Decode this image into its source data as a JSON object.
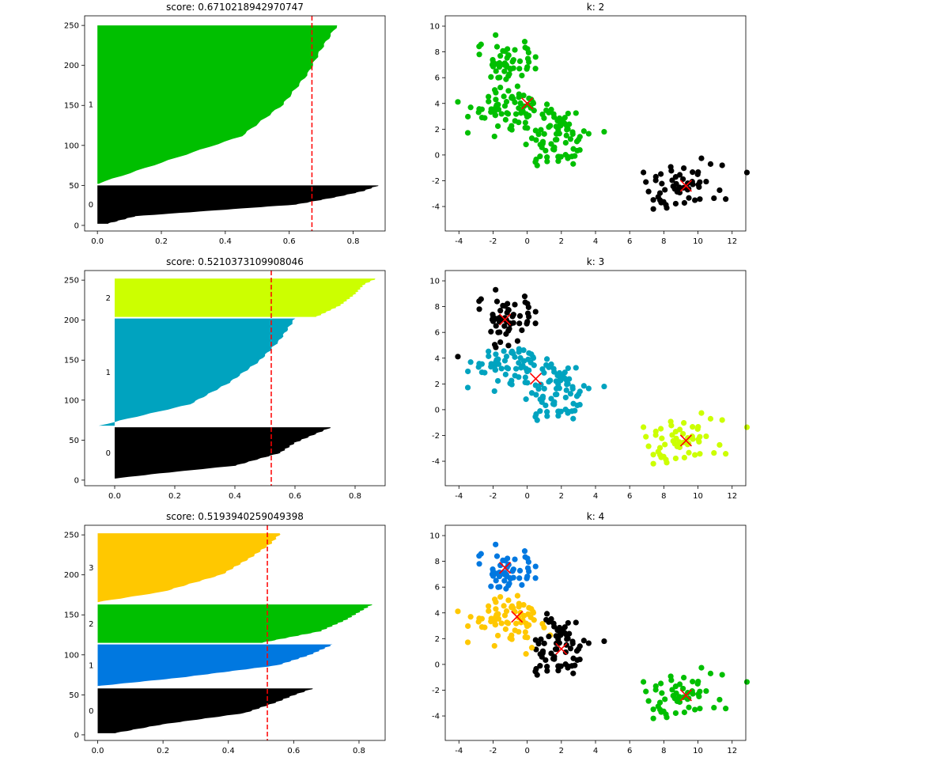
{
  "figure": {
    "layout": "3 rows x 2 columns (silhouette plot left, cluster scatter right)"
  },
  "colors": {
    "threshold_line": "#ff0000",
    "centroid_marker": "#ff0000",
    "axes": "#000000"
  },
  "chart_data": [
    {
      "type": "area",
      "subtype": "silhouette",
      "title": "score: 0.6710218942970747",
      "score": 0.6710218942970747,
      "xlabel": "",
      "ylabel": "",
      "xlim": [
        -0.04,
        0.9
      ],
      "ylim": [
        -7,
        262
      ],
      "xticks": [
        0,
        0.2,
        0.4,
        0.6,
        0.8
      ],
      "xtick_labels": [
        "0.0",
        "0.2",
        "0.4",
        "0.6",
        "0.8"
      ],
      "yticks": [
        0,
        50,
        100,
        150,
        200,
        250
      ],
      "grid": false,
      "clusters": [
        {
          "label": "0",
          "color": "#000000",
          "y_range": [
            2,
            50
          ],
          "profile": [
            [
              0.0,
              0.03
            ],
            [
              0.2,
              0.12
            ],
            [
              0.5,
              0.62
            ],
            [
              0.7,
              0.75
            ],
            [
              0.85,
              0.83
            ],
            [
              1.0,
              0.88
            ]
          ]
        },
        {
          "label": "1",
          "color": "#00bf00",
          "y_range": [
            52,
            250
          ],
          "profile": [
            [
              0.0,
              0.0
            ],
            [
              0.1,
              0.15
            ],
            [
              0.3,
              0.45
            ],
            [
              0.5,
              0.58
            ],
            [
              0.7,
              0.66
            ],
            [
              0.85,
              0.7
            ],
            [
              1.0,
              0.75
            ]
          ]
        }
      ]
    },
    {
      "type": "scatter",
      "title": "k: 2",
      "xlabel": "",
      "ylabel": "",
      "xlim": [
        -4.8,
        12.8
      ],
      "ylim": [
        -5.9,
        10.8
      ],
      "xticks": [
        -4,
        -2,
        0,
        2,
        4,
        6,
        8,
        10,
        12
      ],
      "yticks": [
        -4,
        -2,
        0,
        2,
        4,
        6,
        8,
        10
      ],
      "grid": false,
      "cluster_colors": [
        "#000000",
        "#00bf00"
      ],
      "centroids": [
        {
          "x": 9.3,
          "y": -2.4,
          "cluster": 0
        },
        {
          "x": 0.0,
          "y": 4.0,
          "cluster": 1
        }
      ]
    },
    {
      "type": "area",
      "subtype": "silhouette",
      "title": "score: 0.5210373109908046",
      "score": 0.5210373109908046,
      "xlabel": "",
      "ylabel": "",
      "xlim": [
        -0.1,
        0.9
      ],
      "ylim": [
        -7,
        262
      ],
      "xticks": [
        0,
        0.2,
        0.4,
        0.6,
        0.8
      ],
      "xtick_labels": [
        "0.0",
        "0.2",
        "0.4",
        "0.6",
        "0.8"
      ],
      "yticks": [
        0,
        50,
        100,
        150,
        200,
        250
      ],
      "grid": false,
      "clusters": [
        {
          "label": "0",
          "color": "#000000",
          "y_range": [
            2,
            66
          ],
          "profile": [
            [
              0.0,
              0.0
            ],
            [
              0.1,
              0.15
            ],
            [
              0.25,
              0.4
            ],
            [
              0.5,
              0.55
            ],
            [
              0.7,
              0.6
            ],
            [
              0.85,
              0.66
            ],
            [
              1.0,
              0.72
            ]
          ]
        },
        {
          "label": "1",
          "color": "#00a3bf",
          "y_range": [
            68,
            202
          ],
          "profile": [
            [
              0.0,
              -0.05
            ],
            [
              0.05,
              0.02
            ],
            [
              0.2,
              0.25
            ],
            [
              0.4,
              0.38
            ],
            [
              0.6,
              0.48
            ],
            [
              0.8,
              0.55
            ],
            [
              1.0,
              0.6
            ]
          ]
        },
        {
          "label": "2",
          "color": "#ccff00",
          "y_range": [
            204,
            252
          ],
          "profile": [
            [
              0.0,
              0.67
            ],
            [
              0.3,
              0.75
            ],
            [
              0.6,
              0.8
            ],
            [
              0.85,
              0.83
            ],
            [
              1.0,
              0.87
            ]
          ]
        }
      ]
    },
    {
      "type": "scatter",
      "title": "k: 3",
      "xlabel": "",
      "ylabel": "",
      "xlim": [
        -4.8,
        12.8
      ],
      "ylim": [
        -5.9,
        10.8
      ],
      "xticks": [
        -4,
        -2,
        0,
        2,
        4,
        6,
        8,
        10,
        12
      ],
      "yticks": [
        -4,
        -2,
        0,
        2,
        4,
        6,
        8,
        10
      ],
      "grid": false,
      "cluster_colors": [
        "#000000",
        "#00a3bf",
        "#ccff00"
      ],
      "centroids": [
        {
          "x": -1.3,
          "y": 7.0,
          "cluster": 0
        },
        {
          "x": 0.5,
          "y": 2.4,
          "cluster": 1
        },
        {
          "x": 9.3,
          "y": -2.4,
          "cluster": 2
        }
      ]
    },
    {
      "type": "area",
      "subtype": "silhouette",
      "title": "score: 0.5193940259049398",
      "score": 0.5193940259049398,
      "xlabel": "",
      "ylabel": "",
      "xlim": [
        -0.04,
        0.88
      ],
      "ylim": [
        -7,
        262
      ],
      "xticks": [
        0,
        0.2,
        0.4,
        0.6,
        0.8
      ],
      "xtick_labels": [
        "0.0",
        "0.2",
        "0.4",
        "0.6",
        "0.8"
      ],
      "yticks": [
        0,
        50,
        100,
        150,
        200,
        250
      ],
      "grid": false,
      "clusters": [
        {
          "label": "0",
          "color": "#000000",
          "y_range": [
            2,
            58
          ],
          "profile": [
            [
              0.0,
              0.05
            ],
            [
              0.2,
              0.2
            ],
            [
              0.45,
              0.45
            ],
            [
              0.7,
              0.55
            ],
            [
              0.85,
              0.6
            ],
            [
              1.0,
              0.66
            ]
          ]
        },
        {
          "label": "1",
          "color": "#0078e0",
          "y_range": [
            61,
            113
          ],
          "profile": [
            [
              0.0,
              0.0
            ],
            [
              0.2,
              0.25
            ],
            [
              0.5,
              0.55
            ],
            [
              0.75,
              0.65
            ],
            [
              1.0,
              0.72
            ]
          ]
        },
        {
          "label": "2",
          "color": "#00bf00",
          "y_range": [
            115,
            163
          ],
          "profile": [
            [
              0.0,
              0.5
            ],
            [
              0.3,
              0.68
            ],
            [
              0.6,
              0.76
            ],
            [
              0.85,
              0.81
            ],
            [
              1.0,
              0.84
            ]
          ]
        },
        {
          "label": "3",
          "color": "#ffc800",
          "y_range": [
            166,
            252
          ],
          "profile": [
            [
              0.0,
              0.0
            ],
            [
              0.15,
              0.2
            ],
            [
              0.4,
              0.38
            ],
            [
              0.65,
              0.47
            ],
            [
              0.85,
              0.53
            ],
            [
              1.0,
              0.56
            ]
          ]
        }
      ]
    },
    {
      "type": "scatter",
      "title": "k: 4",
      "xlabel": "",
      "ylabel": "",
      "xlim": [
        -4.8,
        12.8
      ],
      "ylim": [
        -5.9,
        10.8
      ],
      "xticks": [
        -4,
        -2,
        0,
        2,
        4,
        6,
        8,
        10,
        12
      ],
      "yticks": [
        -4,
        -2,
        0,
        2,
        4,
        6,
        8,
        10
      ],
      "grid": false,
      "cluster_colors": [
        "#000000",
        "#0078e0",
        "#00bf00",
        "#ffc800"
      ],
      "centroids": [
        {
          "x": 2.0,
          "y": 1.2,
          "cluster": 0
        },
        {
          "x": -1.3,
          "y": 7.5,
          "cluster": 1
        },
        {
          "x": 9.3,
          "y": -2.4,
          "cluster": 2
        },
        {
          "x": -0.6,
          "y": 3.7,
          "cluster": 3
        }
      ]
    }
  ]
}
